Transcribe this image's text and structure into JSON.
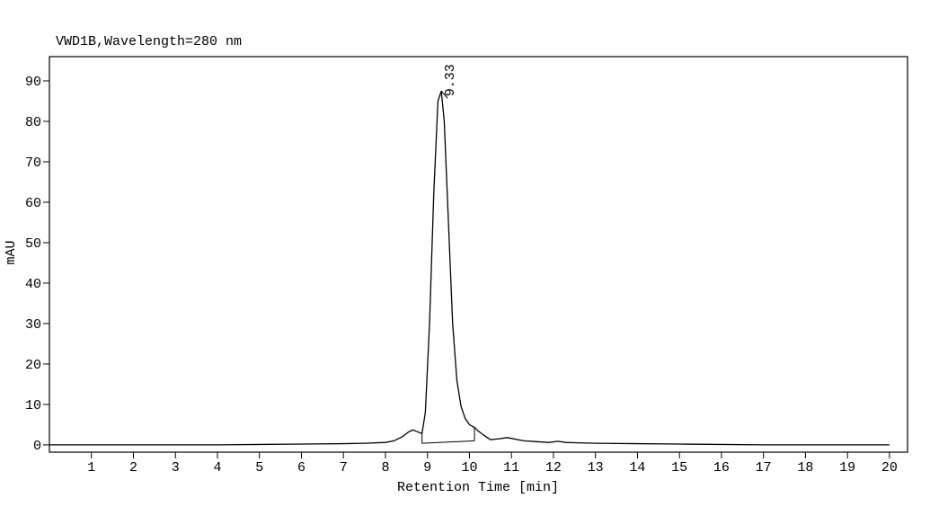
{
  "chart_data": {
    "type": "line",
    "title": "VWD1B,Wavelength=280 nm",
    "xlabel": "Retention Time [min]",
    "ylabel": "mAU",
    "xlim": [
      0,
      20.43
    ],
    "ylim": [
      -1.8,
      96
    ],
    "xticks": [
      1,
      2,
      3,
      4,
      5,
      6,
      7,
      8,
      9,
      10,
      11,
      12,
      13,
      14,
      15,
      16,
      17,
      18,
      19,
      20
    ],
    "yticks": [
      0,
      10,
      20,
      30,
      40,
      50,
      60,
      70,
      80,
      90
    ],
    "series": [
      {
        "color": "#000000",
        "x": [
          0,
          1,
          2,
          3,
          4,
          5,
          6,
          7,
          7.5,
          8,
          8.2,
          8.4,
          8.55,
          8.65,
          8.75,
          8.87,
          8.95,
          9.05,
          9.15,
          9.25,
          9.33,
          9.4,
          9.5,
          9.6,
          9.7,
          9.8,
          9.9,
          10.0,
          10.12,
          10.2,
          10.3,
          10.4,
          10.5,
          10.7,
          10.9,
          11.1,
          11.3,
          11.6,
          11.9,
          12.1,
          12.3,
          12.6,
          13,
          14,
          15,
          16,
          17,
          18,
          19,
          20
        ],
        "values": [
          0,
          0,
          0,
          0,
          0,
          0.1,
          0.2,
          0.3,
          0.4,
          0.6,
          1,
          2,
          3.2,
          3.7,
          3.3,
          2.8,
          8,
          30,
          62,
          85,
          87.5,
          80,
          55,
          30,
          16,
          9.5,
          6.5,
          5,
          4.3,
          3.5,
          2.7,
          2,
          1.3,
          1.5,
          1.8,
          1.4,
          1,
          0.8,
          0.6,
          0.9,
          0.6,
          0.5,
          0.4,
          0.3,
          0.2,
          0.1,
          0,
          0,
          0,
          0
        ]
      },
      {
        "color": "#000000",
        "x": [
          8.87,
          10.12
        ],
        "values": [
          0.4,
          1.0
        ]
      }
    ],
    "peaks": [
      {
        "label": "9.33",
        "x": 9.33,
        "y": 87.5
      }
    ]
  }
}
